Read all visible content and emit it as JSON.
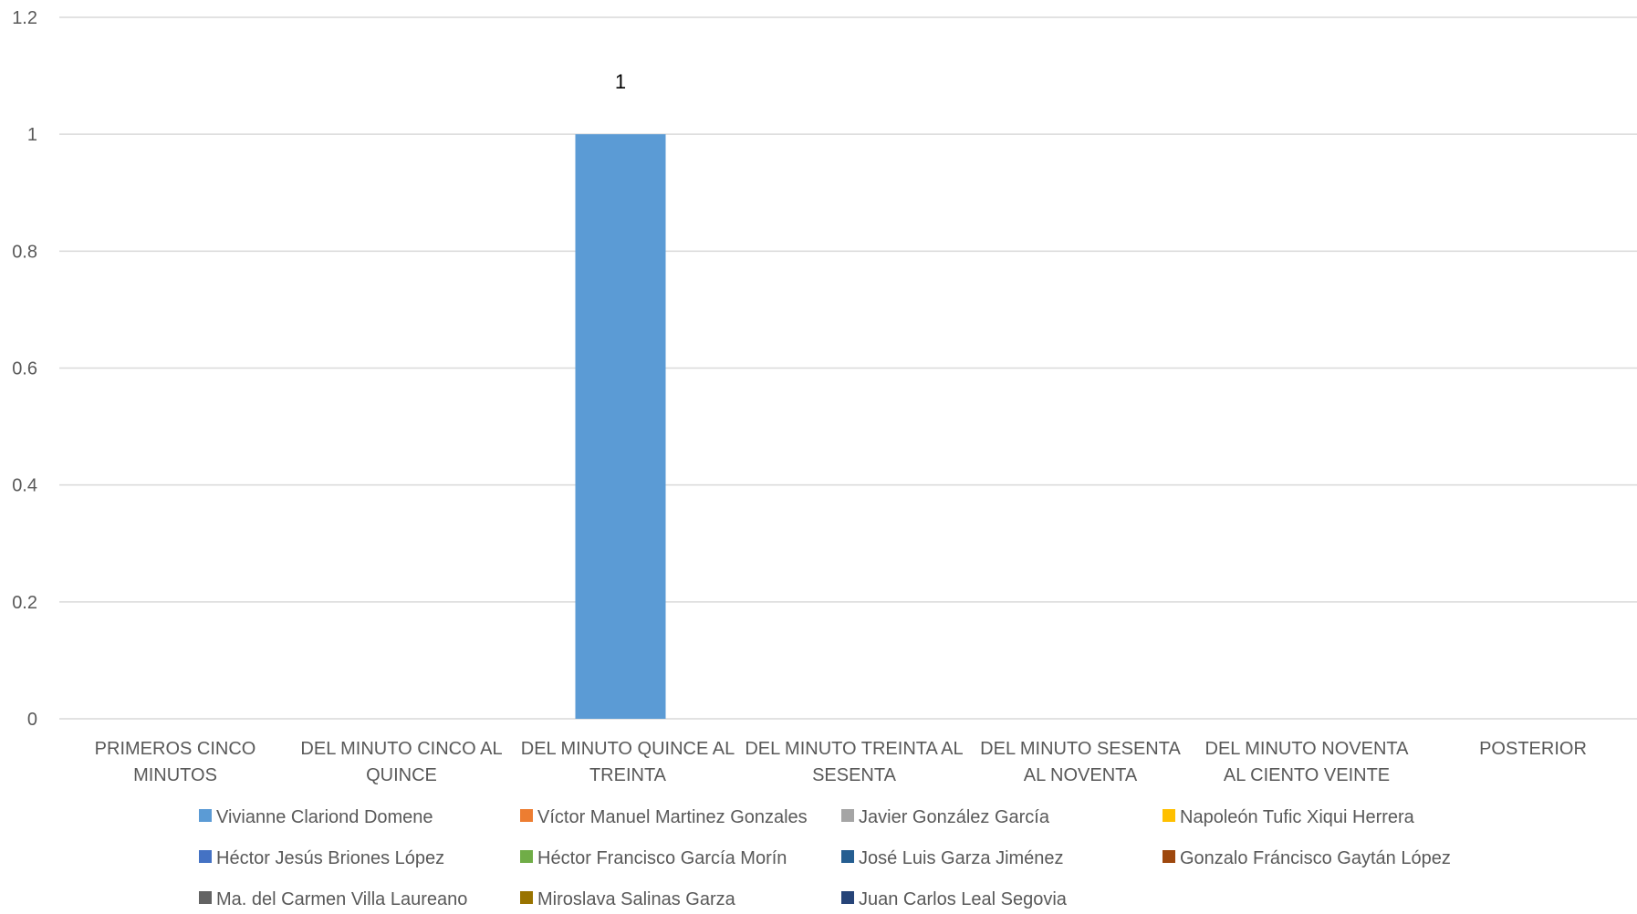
{
  "chart_data": {
    "type": "bar",
    "title": "",
    "xlabel": "",
    "ylabel": "",
    "ylim": [
      0,
      1.2
    ],
    "yticks": [
      "0",
      "0.2",
      "0.4",
      "0.6",
      "0.8",
      "1",
      "1.2"
    ],
    "grid": true,
    "legend_position": "bottom",
    "categories": [
      [
        "PRIMEROS CINCO",
        "MINUTOS"
      ],
      [
        "DEL MINUTO CINCO AL",
        "QUINCE"
      ],
      [
        "DEL MINUTO QUINCE AL",
        "TREINTA"
      ],
      [
        "DEL MINUTO TREINTA AL",
        "SESENTA"
      ],
      [
        "DEL MINUTO SESENTA",
        "AL NOVENTA"
      ],
      [
        "DEL MINUTO NOVENTA",
        "AL CIENTO VEINTE"
      ],
      [
        "POSTERIOR"
      ]
    ],
    "series": [
      {
        "name": "Vivianne Clariond Domene",
        "color": "#5B9BD5",
        "values": [
          0,
          0,
          1,
          0,
          0,
          0,
          0
        ]
      },
      {
        "name": "Víctor Manuel Martinez Gonzales",
        "color": "#ED7D31",
        "values": [
          0,
          0,
          0,
          0,
          0,
          0,
          0
        ]
      },
      {
        "name": "Javier González García",
        "color": "#A5A5A5",
        "values": [
          0,
          0,
          0,
          0,
          0,
          0,
          0
        ]
      },
      {
        "name": "Napoleón Tufic Xiqui Herrera",
        "color": "#FFC000",
        "values": [
          0,
          0,
          0,
          0,
          0,
          0,
          0
        ]
      },
      {
        "name": "Héctor Jesús Briones López",
        "color": "#4472C4",
        "values": [
          0,
          0,
          0,
          0,
          0,
          0,
          0
        ]
      },
      {
        "name": "Héctor Francisco García Morín",
        "color": "#70AD47",
        "values": [
          0,
          0,
          0,
          0,
          0,
          0,
          0
        ]
      },
      {
        "name": "José Luis Garza Jiménez",
        "color": "#255E91",
        "values": [
          0,
          0,
          0,
          0,
          0,
          0,
          0
        ]
      },
      {
        "name": "Gonzalo Fráncisco Gaytán López",
        "color": "#9E480E",
        "values": [
          0,
          0,
          0,
          0,
          0,
          0,
          0
        ]
      },
      {
        "name": "Ma. del Carmen Villa Laureano",
        "color": "#636363",
        "values": [
          0,
          0,
          0,
          0,
          0,
          0,
          0
        ]
      },
      {
        "name": "Miroslava Salinas Garza",
        "color": "#997300",
        "values": [
          0,
          0,
          0,
          0,
          0,
          0,
          0
        ]
      },
      {
        "name": "Juan Carlos Leal Segovia",
        "color": "#264478",
        "values": [
          0,
          0,
          0,
          0,
          0,
          0,
          0
        ]
      }
    ],
    "data_labels": [
      {
        "series": 0,
        "category": 2,
        "text": "1"
      }
    ]
  }
}
